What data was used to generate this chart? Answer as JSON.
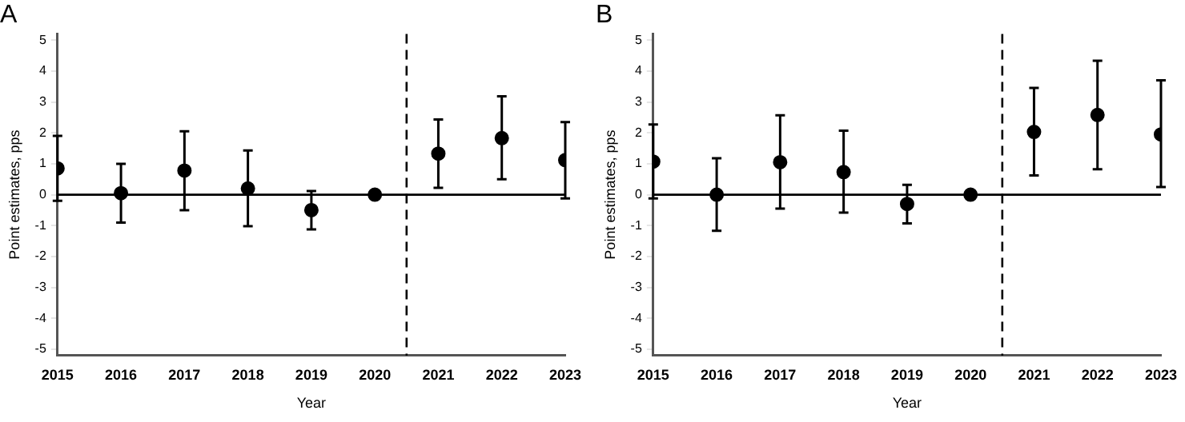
{
  "chart_data": [
    {
      "type": "scatter",
      "title": "A",
      "xlabel": "Year",
      "ylabel": "Point estimates, pps",
      "x": [
        2015,
        2016,
        2017,
        2018,
        2019,
        2020,
        2021,
        2022,
        2023
      ],
      "series": [
        {
          "color": "#000000",
          "values": [
            0.85,
            0.05,
            0.78,
            0.2,
            -0.5,
            0,
            1.33,
            1.83,
            1.12
          ],
          "errors": [
            [
              -0.2,
              1.9
            ],
            [
              -0.9,
              1.0
            ],
            [
              -0.5,
              2.05
            ],
            [
              -1.02,
              1.43
            ],
            [
              -1.12,
              0.12
            ],
            null,
            [
              0.22,
              2.43
            ],
            [
              0.5,
              3.18
            ],
            [
              -0.12,
              2.35
            ]
          ]
        }
      ],
      "xlim": [
        2015,
        2023
      ],
      "xticks": [
        2015,
        2016,
        2017,
        2018,
        2019,
        2020,
        2021,
        2022,
        2023
      ],
      "ylim": [
        -5.2,
        5.2
      ],
      "yticks": [
        -5,
        -4,
        -3,
        -2,
        -1,
        0,
        1,
        2,
        3,
        4,
        5
      ],
      "ref_lines": [
        {
          "axis": "y",
          "value": 0,
          "color": "#000000",
          "line_style": "solid"
        },
        {
          "axis": "x",
          "value": 2020.5,
          "color": "#000000",
          "line_style": "dashed"
        }
      ],
      "marker": "circle",
      "grid": false,
      "legend": false
    },
    {
      "type": "scatter",
      "title": "B",
      "xlabel": "Year",
      "ylabel": "Point estimates, pps",
      "x": [
        2015,
        2016,
        2017,
        2018,
        2019,
        2020,
        2021,
        2022,
        2023
      ],
      "series": [
        {
          "color": "#000000",
          "values": [
            1.07,
            0,
            1.05,
            0.73,
            -0.3,
            0,
            2.03,
            2.58,
            1.95
          ],
          "errors": [
            [
              -0.12,
              2.27
            ],
            [
              -1.17,
              1.18
            ],
            [
              -0.45,
              2.57
            ],
            [
              -0.58,
              2.07
            ],
            [
              -0.93,
              0.32
            ],
            null,
            [
              0.62,
              3.45
            ],
            [
              0.82,
              4.33
            ],
            [
              0.25,
              3.7
            ]
          ]
        }
      ],
      "xlim": [
        2015,
        2023
      ],
      "xticks": [
        2015,
        2016,
        2017,
        2018,
        2019,
        2020,
        2021,
        2022,
        2023
      ],
      "ylim": [
        -5.2,
        5.2
      ],
      "yticks": [
        -5,
        -4,
        -3,
        -2,
        -1,
        0,
        1,
        2,
        3,
        4,
        5
      ],
      "ref_lines": [
        {
          "axis": "y",
          "value": 0,
          "color": "#000000",
          "line_style": "solid"
        },
        {
          "axis": "x",
          "value": 2020.5,
          "color": "#000000",
          "line_style": "dashed"
        }
      ],
      "marker": "circle",
      "grid": false,
      "legend": false
    }
  ]
}
